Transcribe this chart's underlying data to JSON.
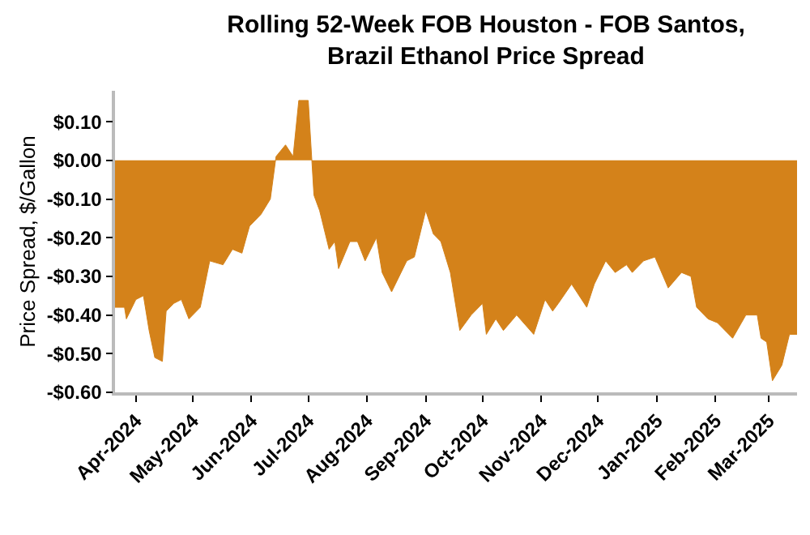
{
  "chart_data": {
    "type": "area",
    "title": "Rolling 52-Week FOB Houston - FOB Santos, Brazil Ethanol Price Spread",
    "ylabel": "Price Spread, $/Gallon",
    "x": [
      "2024-03-21",
      "2024-03-26",
      "2024-03-27",
      "2024-04-01",
      "2024-04-05",
      "2024-04-08",
      "2024-04-11",
      "2024-04-15",
      "2024-04-17",
      "2024-04-21",
      "2024-04-25",
      "2024-04-29",
      "2024-05-05",
      "2024-05-10",
      "2024-05-17",
      "2024-05-22",
      "2024-05-27",
      "2024-05-31",
      "2024-06-06",
      "2024-06-11",
      "2024-06-14",
      "2024-06-19",
      "2024-06-23",
      "2024-06-26",
      "2024-07-01",
      "2024-07-04",
      "2024-07-07",
      "2024-07-12",
      "2024-07-15",
      "2024-07-17",
      "2024-07-23",
      "2024-07-27",
      "2024-07-31",
      "2024-08-06",
      "2024-08-09",
      "2024-08-14",
      "2024-08-22",
      "2024-08-26",
      "2024-09-01",
      "2024-09-05",
      "2024-09-09",
      "2024-09-14",
      "2024-09-19",
      "2024-09-25",
      "2024-10-01",
      "2024-10-03",
      "2024-10-08",
      "2024-10-12",
      "2024-10-19",
      "2024-10-28",
      "2024-11-03",
      "2024-11-07",
      "2024-11-10",
      "2024-11-17",
      "2024-11-25",
      "2024-11-29",
      "2024-12-05",
      "2024-12-10",
      "2024-12-16",
      "2024-12-19",
      "2024-12-25",
      "2024-12-31",
      "2025-01-07",
      "2025-01-14",
      "2025-01-19",
      "2025-01-22",
      "2025-01-28",
      "2025-02-02",
      "2025-02-10",
      "2025-02-17",
      "2025-02-23",
      "2025-02-25",
      "2025-02-28",
      "2025-03-03",
      "2025-03-08",
      "2025-03-12",
      "2025-03-16"
    ],
    "series": [
      {
        "color": "#d4821a",
        "values": [
          -0.38,
          -0.38,
          -0.41,
          -0.36,
          -0.35,
          -0.44,
          -0.51,
          -0.52,
          -0.39,
          -0.37,
          -0.36,
          -0.41,
          -0.38,
          -0.26,
          -0.27,
          -0.23,
          -0.24,
          -0.17,
          -0.14,
          -0.1,
          0.01,
          0.04,
          0.01,
          0.155,
          0.155,
          -0.09,
          -0.13,
          -0.23,
          -0.21,
          -0.28,
          -0.21,
          -0.21,
          -0.26,
          -0.2,
          -0.29,
          -0.34,
          -0.26,
          -0.25,
          -0.13,
          -0.19,
          -0.21,
          -0.29,
          -0.44,
          -0.4,
          -0.37,
          -0.45,
          -0.41,
          -0.44,
          -0.4,
          -0.45,
          -0.36,
          -0.39,
          -0.37,
          -0.32,
          -0.38,
          -0.32,
          -0.26,
          -0.29,
          -0.27,
          -0.29,
          -0.26,
          -0.25,
          -0.33,
          -0.29,
          -0.3,
          -0.38,
          -0.41,
          -0.42,
          -0.46,
          -0.4,
          -0.4,
          -0.46,
          -0.47,
          -0.57,
          -0.53,
          -0.45,
          -0.45
        ]
      }
    ],
    "xlim": [
      "2024-03-21",
      "2025-03-16"
    ],
    "xticks": [
      {
        "value": "2024-04-01",
        "label": "Apr-2024"
      },
      {
        "value": "2024-05-01",
        "label": "May-2024"
      },
      {
        "value": "2024-06-01",
        "label": "Jun-2024"
      },
      {
        "value": "2024-07-01",
        "label": "Jul-2024"
      },
      {
        "value": "2024-08-01",
        "label": "Aug-2024"
      },
      {
        "value": "2024-09-01",
        "label": "Sep-2024"
      },
      {
        "value": "2024-10-01",
        "label": "Oct-2024"
      },
      {
        "value": "2024-11-01",
        "label": "Nov-2024"
      },
      {
        "value": "2024-12-01",
        "label": "Dec-2024"
      },
      {
        "value": "2025-01-01",
        "label": "Jan-2025"
      },
      {
        "value": "2025-02-01",
        "label": "Feb-2025"
      },
      {
        "value": "2025-03-01",
        "label": "Mar-2025"
      }
    ],
    "ylim": [
      -0.6,
      0.18
    ],
    "yticks": [
      {
        "value": 0.1,
        "label": "$0.10"
      },
      {
        "value": 0,
        "label": "$0.00"
      },
      {
        "value": -0.1,
        "label": "-$0.10"
      },
      {
        "value": -0.2,
        "label": "-$0.20"
      },
      {
        "value": -0.3,
        "label": "-$0.30"
      },
      {
        "value": -0.4,
        "label": "-$0.40"
      },
      {
        "value": -0.5,
        "label": "-$0.50"
      },
      {
        "value": -0.6,
        "label": "-$0.60"
      }
    ],
    "legend": false
  }
}
